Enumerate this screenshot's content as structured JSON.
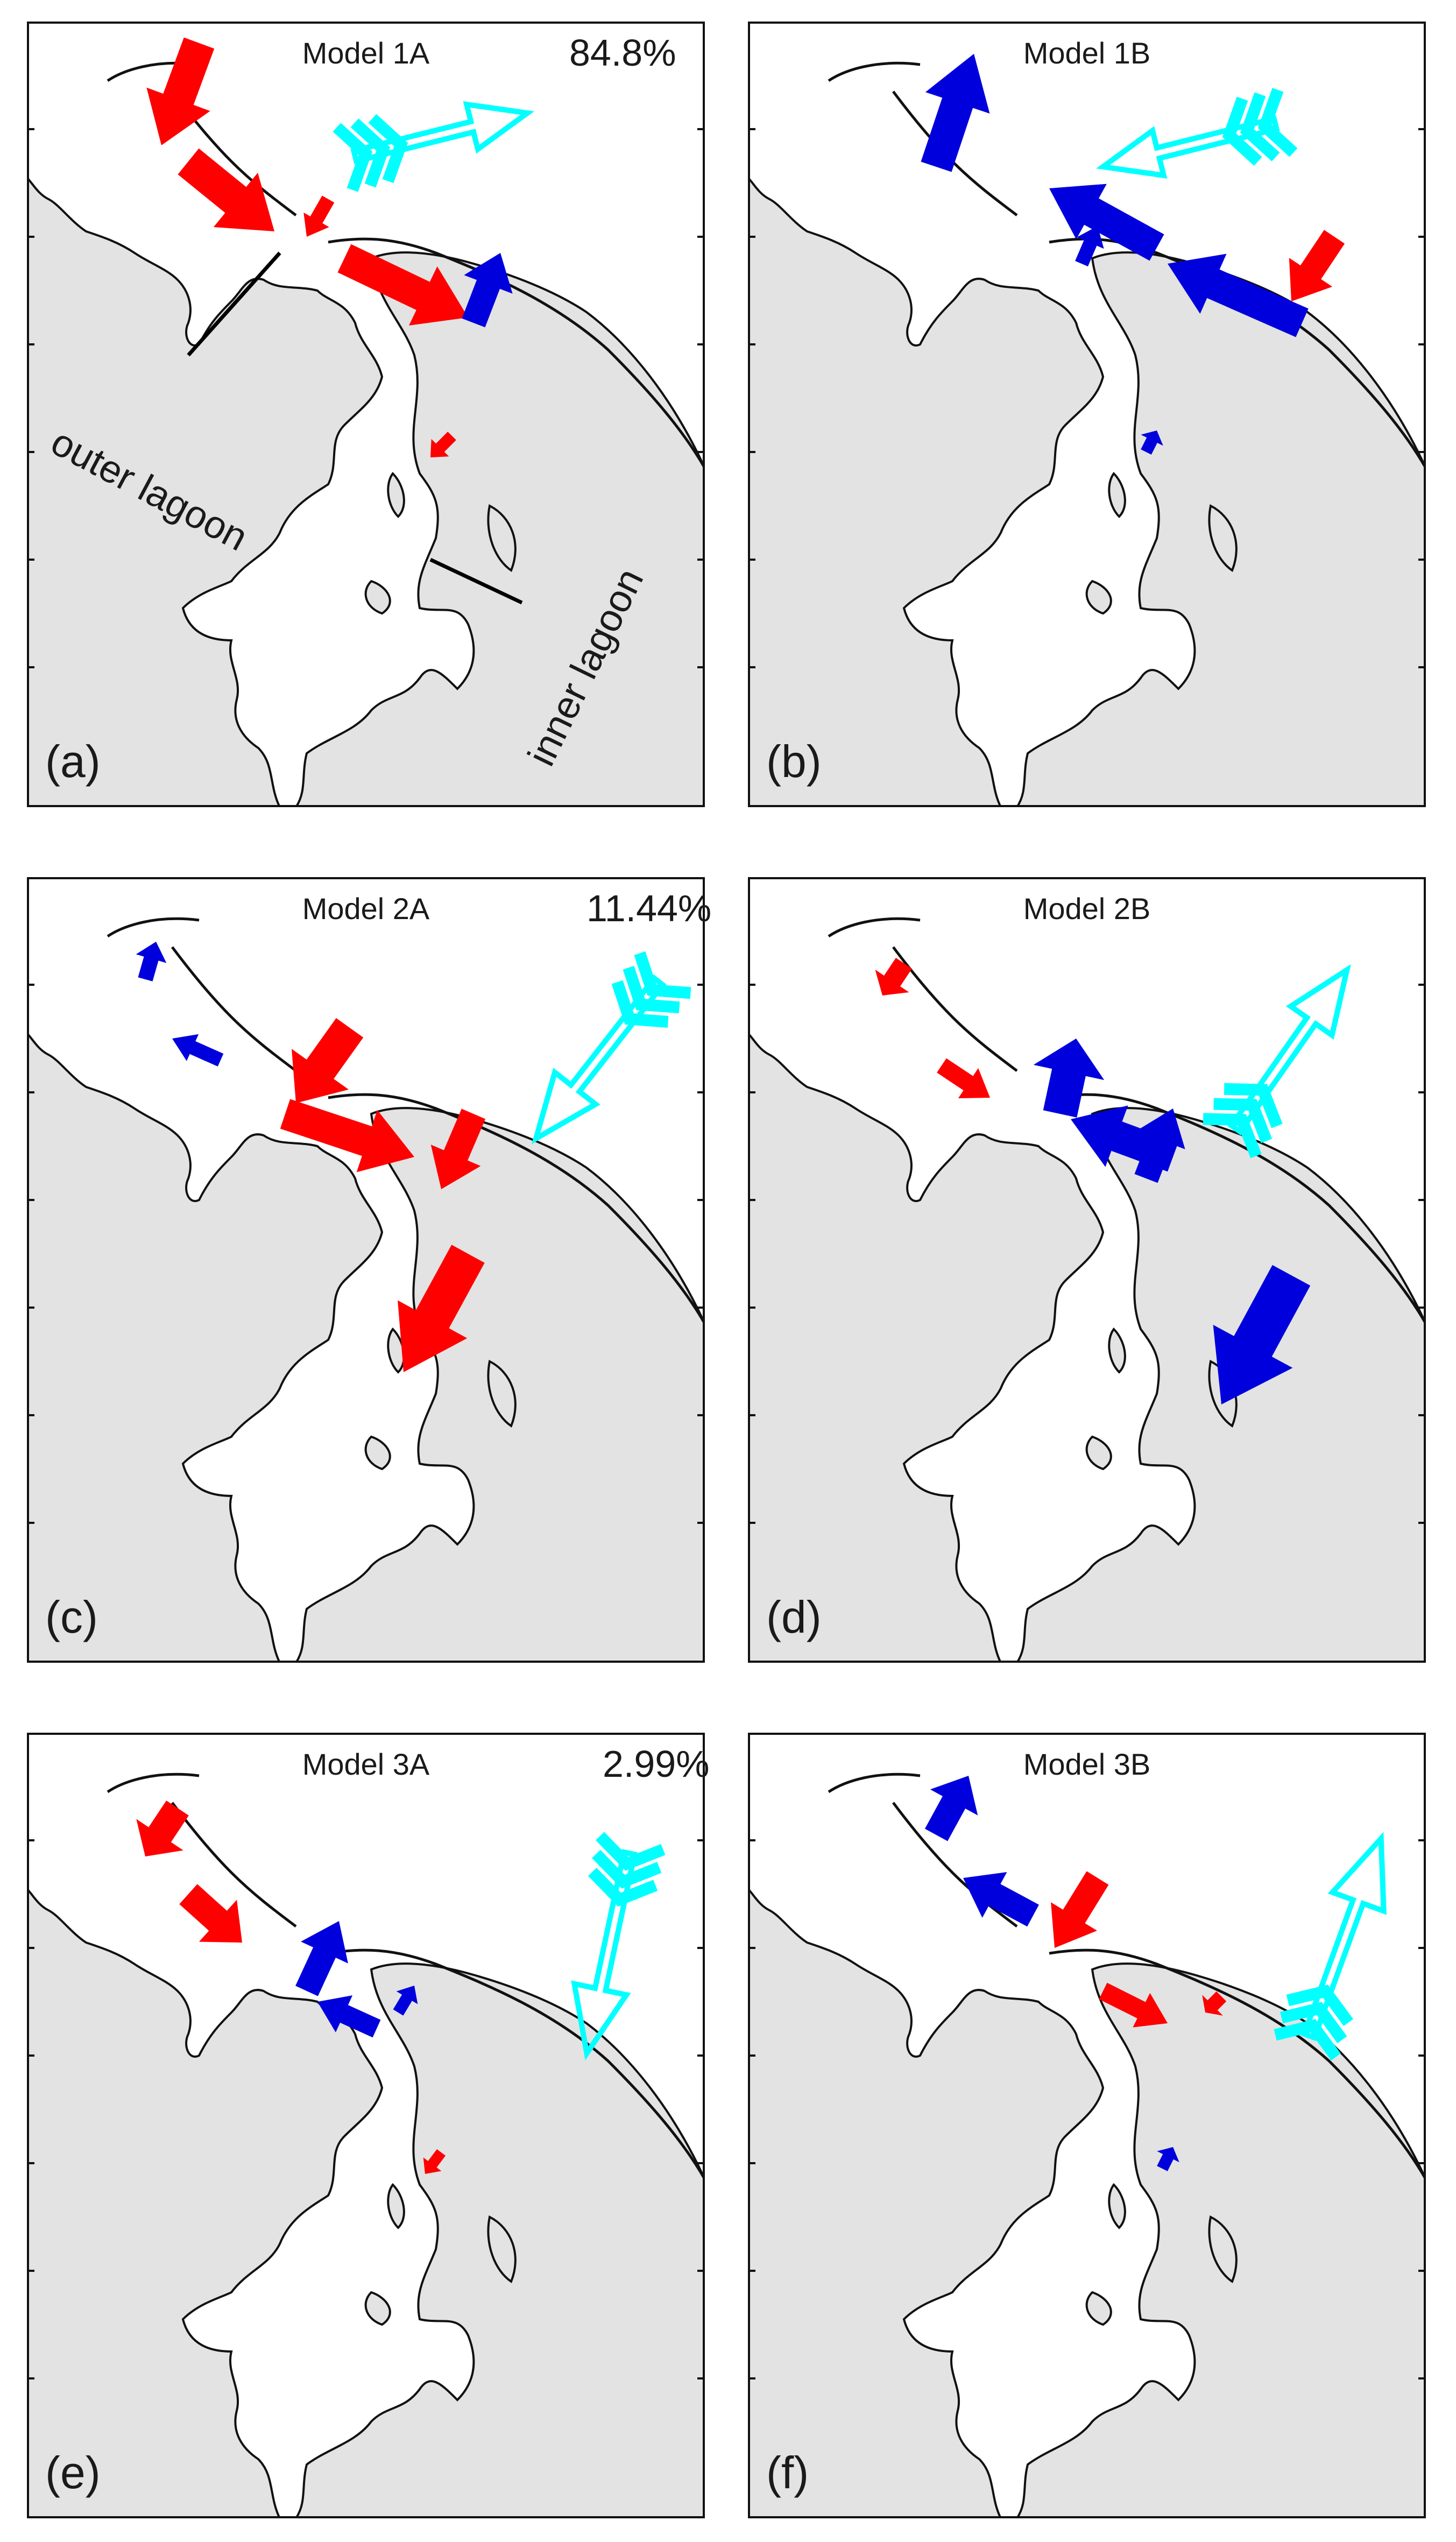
{
  "panels": [
    {
      "id": "a",
      "letter": "(a)",
      "title": "Model 1A",
      "percent": "84.8%",
      "outer_label": "outer lagoon",
      "inner_label": "inner lagoon",
      "wind": "wind-east-northeast",
      "arrows": [
        {
          "color": "red",
          "from": "NW lobe"
        },
        {
          "color": "red",
          "from": "NW basin"
        },
        {
          "color": "red",
          "from": "channel small"
        },
        {
          "color": "red",
          "from": "channel to inner"
        },
        {
          "color": "blue",
          "from": "NE inlet"
        },
        {
          "color": "red",
          "from": "inner basin small"
        }
      ]
    },
    {
      "id": "b",
      "letter": "(b)",
      "title": "Model 1B",
      "percent": "",
      "wind": "wind-west-southwest",
      "arrows": [
        {
          "color": "blue"
        },
        {
          "color": "blue"
        },
        {
          "color": "blue"
        },
        {
          "color": "blue"
        },
        {
          "color": "red"
        },
        {
          "color": "blue"
        }
      ]
    },
    {
      "id": "c",
      "letter": "(c)",
      "title": "Model 2A",
      "percent": "11.44%",
      "wind": "wind-southwest",
      "arrows": [
        {
          "color": "blue"
        },
        {
          "color": "blue"
        },
        {
          "color": "red"
        },
        {
          "color": "red"
        },
        {
          "color": "red"
        },
        {
          "color": "red"
        }
      ]
    },
    {
      "id": "d",
      "letter": "(d)",
      "title": "Model 2B",
      "percent": "",
      "wind": "wind-northeast",
      "arrows": [
        {
          "color": "red"
        },
        {
          "color": "red"
        },
        {
          "color": "blue"
        },
        {
          "color": "blue"
        },
        {
          "color": "blue"
        },
        {
          "color": "blue"
        }
      ]
    },
    {
      "id": "e",
      "letter": "(e)",
      "title": "Model 3A",
      "percent": "2.99%",
      "wind": "wind-south-southwest",
      "arrows": [
        {
          "color": "red"
        },
        {
          "color": "red"
        },
        {
          "color": "blue"
        },
        {
          "color": "blue"
        },
        {
          "color": "blue"
        },
        {
          "color": "red"
        }
      ]
    },
    {
      "id": "f",
      "letter": "(f)",
      "title": "Model 3B",
      "percent": "",
      "wind": "wind-north-northeast",
      "arrows": [
        {
          "color": "blue"
        },
        {
          "color": "blue"
        },
        {
          "color": "red"
        },
        {
          "color": "red"
        },
        {
          "color": "red"
        },
        {
          "color": "blue"
        }
      ]
    }
  ],
  "colors": {
    "red": "#ff0000",
    "blue": "#0000dd",
    "cyan": "#00ffff",
    "land": "#e3e3e3"
  }
}
